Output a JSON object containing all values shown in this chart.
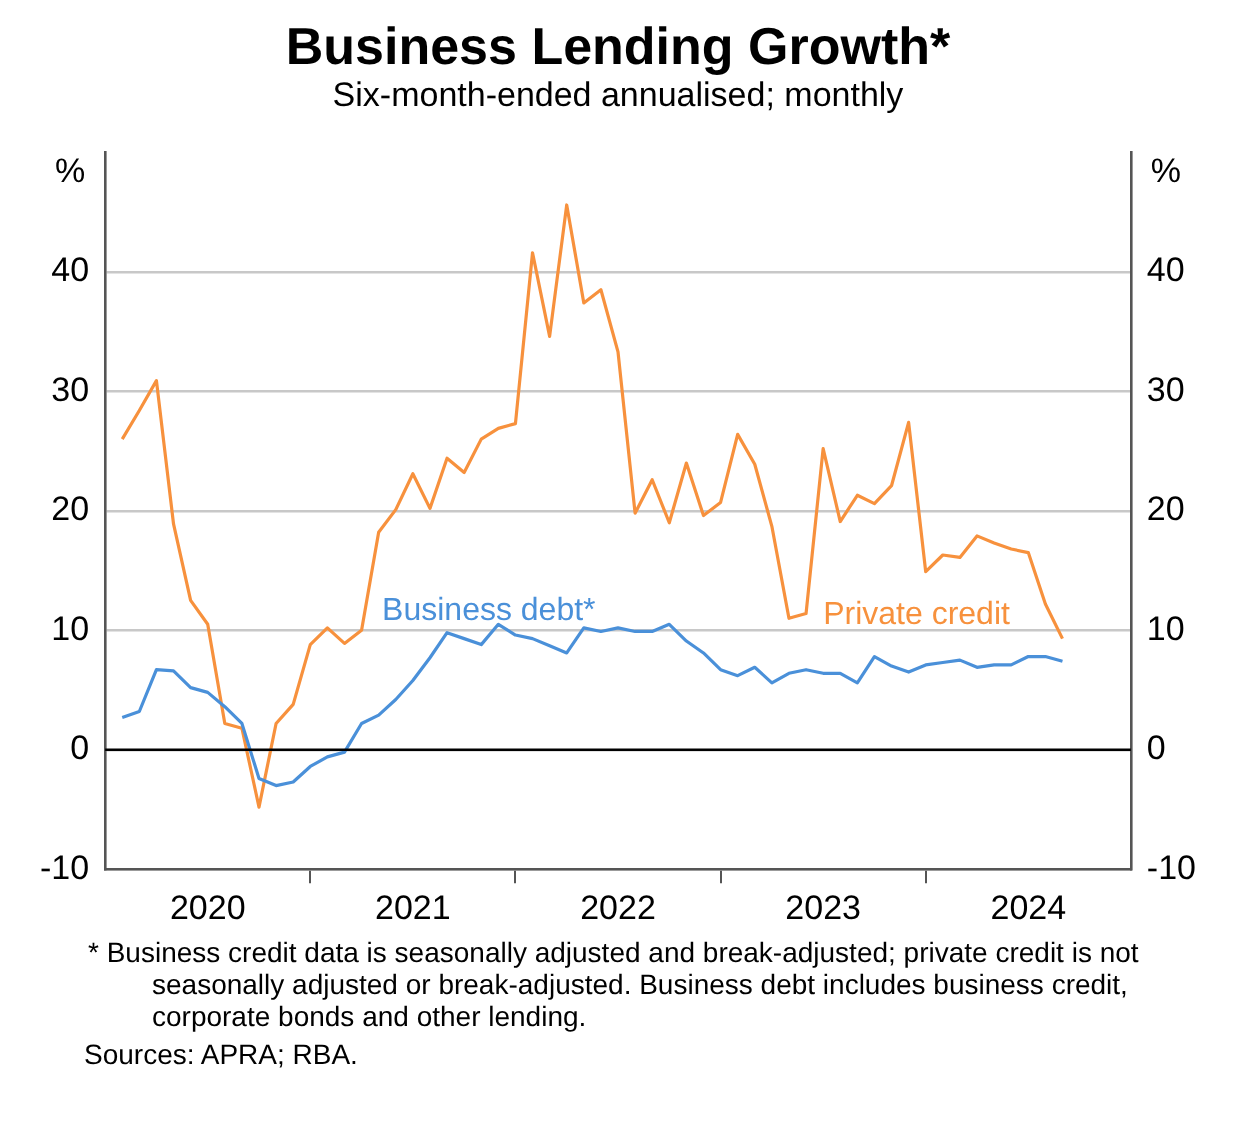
{
  "chart_data": {
    "type": "line",
    "title": "Business Lending Growth*",
    "subtitle": "Six-month-ended annualised; monthly",
    "ylabel": "%",
    "y2label": "%",
    "x": [
      "2020-02",
      "2020-03",
      "2020-04",
      "2020-05",
      "2020-06",
      "2020-07",
      "2020-08",
      "2020-09",
      "2020-10",
      "2020-11",
      "2020-12",
      "2021-01",
      "2021-02",
      "2021-03",
      "2021-04",
      "2021-05",
      "2021-06",
      "2021-07",
      "2021-08",
      "2021-09",
      "2021-10",
      "2021-11",
      "2021-12",
      "2022-01",
      "2022-02",
      "2022-03",
      "2022-04",
      "2022-05",
      "2022-06",
      "2022-07",
      "2022-08",
      "2022-09",
      "2022-10",
      "2022-11",
      "2022-12",
      "2023-01",
      "2023-02",
      "2023-03",
      "2023-04",
      "2023-05",
      "2023-06",
      "2023-07",
      "2023-08",
      "2023-09",
      "2023-10",
      "2023-11",
      "2023-12",
      "2024-01",
      "2024-02",
      "2024-03",
      "2024-04",
      "2024-05",
      "2024-06",
      "2024-07",
      "2024-08",
      "2024-09"
    ],
    "series": [
      {
        "name": "Business debt*",
        "color": "#4a90d9",
        "values": [
          2.7,
          3.2,
          6.7,
          6.6,
          5.2,
          4.8,
          3.6,
          2.2,
          -2.4,
          -3.0,
          -2.7,
          -1.4,
          -0.6,
          -0.2,
          2.2,
          2.9,
          4.2,
          5.8,
          7.7,
          9.8,
          9.3,
          8.8,
          10.5,
          9.6,
          9.3,
          8.7,
          8.1,
          10.2,
          9.9,
          10.2,
          9.9,
          9.9,
          10.5,
          9.1,
          8.1,
          6.7,
          6.2,
          6.9,
          5.6,
          6.4,
          6.7,
          6.4,
          6.4,
          5.6,
          7.8,
          7.0,
          6.5,
          7.1,
          7.3,
          7.5,
          6.9,
          7.1,
          7.1,
          7.8,
          7.8,
          7.4
        ]
      },
      {
        "name": "Private credit",
        "color": "#f7913d",
        "values": [
          26.0,
          28.4,
          30.9,
          18.9,
          12.5,
          10.5,
          2.2,
          1.8,
          -4.8,
          2.2,
          3.8,
          8.8,
          10.2,
          8.9,
          10.0,
          18.2,
          20.1,
          23.1,
          20.2,
          24.4,
          23.2,
          26.0,
          26.9,
          27.3,
          41.6,
          34.6,
          45.6,
          37.4,
          38.5,
          33.3,
          19.8,
          22.6,
          19.0,
          24.0,
          19.6,
          20.7,
          26.4,
          23.9,
          18.7,
          11.0,
          11.4,
          25.2,
          19.1,
          21.3,
          20.6,
          22.1,
          27.4,
          14.9,
          16.3,
          16.1,
          17.9,
          17.3,
          16.8,
          16.5,
          12.2,
          9.3
        ]
      }
    ],
    "xlim": [
      "2020-01",
      "2025-01"
    ],
    "xticks": [
      {
        "value": "2020-07",
        "label": "2020"
      },
      {
        "value": "2021-01",
        "label": null
      },
      {
        "value": "2021-07",
        "label": "2021"
      },
      {
        "value": "2022-01",
        "label": null
      },
      {
        "value": "2022-07",
        "label": "2022"
      },
      {
        "value": "2023-01",
        "label": null
      },
      {
        "value": "2023-07",
        "label": "2023"
      },
      {
        "value": "2024-01",
        "label": null
      },
      {
        "value": "2024-07",
        "label": "2024"
      }
    ],
    "ylim": [
      -10,
      50
    ],
    "yticks": [
      -10,
      0,
      10,
      20,
      30,
      40
    ],
    "y2lim": [
      -10,
      50
    ],
    "y2ticks": [
      -10,
      0,
      10,
      20,
      30,
      40
    ],
    "ref_lines": [
      {
        "axis": "y",
        "value": 0,
        "color": "#000000"
      }
    ],
    "grid": "y",
    "legend": false,
    "marker": "none",
    "line_style": "solid",
    "annotations": [
      "* Business credit data is seasonally adjusted and break-adjusted; private credit is not seasonally adjusted or break-adjusted. Business debt includes business credit, corporate bonds and other lending.",
      "Sources: APRA; RBA."
    ]
  }
}
